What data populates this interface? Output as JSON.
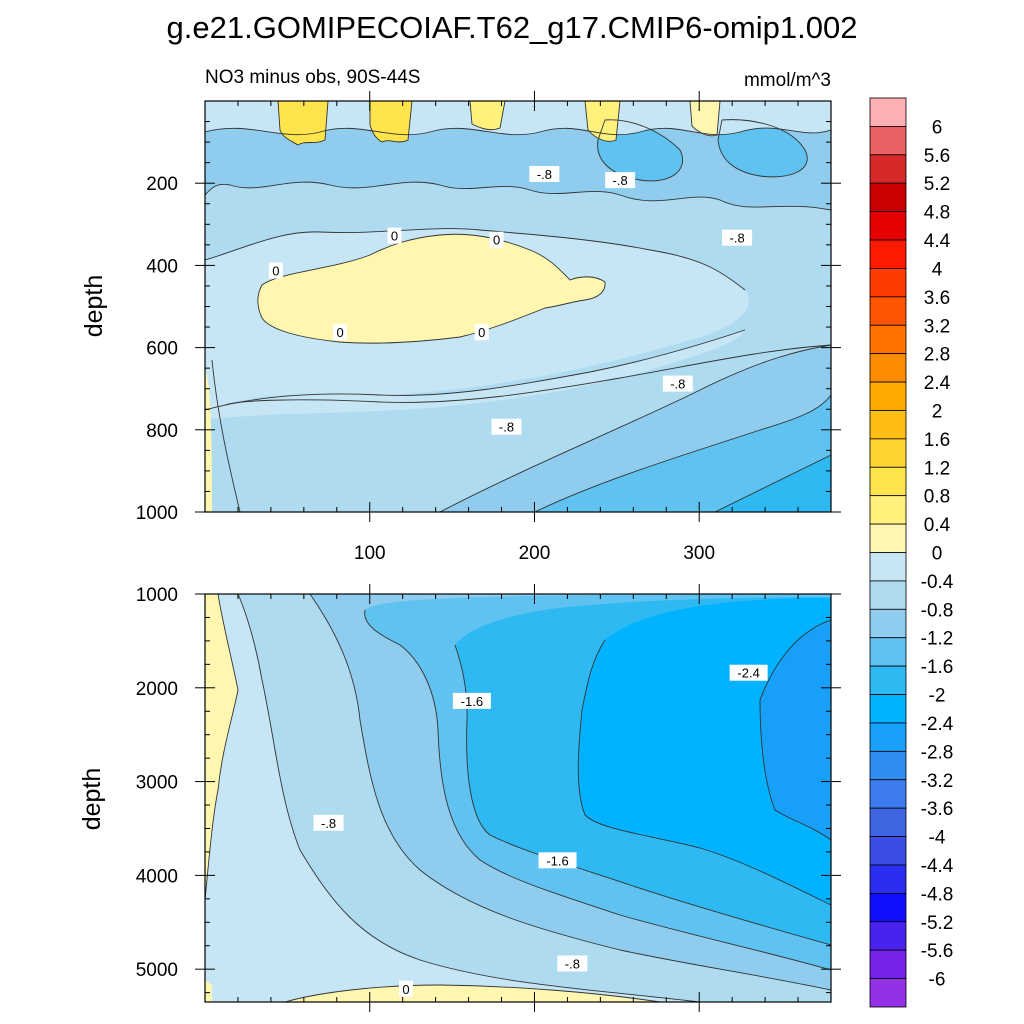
{
  "title": "g.e21.GOMIPECOIAF.T62_g17.CMIP6-omip1.002",
  "chart_data": [
    {
      "type": "contour",
      "panel": "upper",
      "subtitle_left": "NO3 minus obs, 90S-44S",
      "subtitle_right": "mmol/m^3",
      "ylabel": "depth",
      "xlabel": "",
      "xlim": [
        0,
        380
      ],
      "ylim": [
        1000,
        0
      ],
      "x_ticks": [
        100,
        200,
        300
      ],
      "x_tick_labels": [
        "100",
        "200",
        "300"
      ],
      "y_ticks": [
        200,
        400,
        600,
        800,
        1000
      ],
      "y_tick_labels": [
        "200",
        "400",
        "600",
        "800",
        "1000"
      ],
      "contour_labels": [
        {
          "text": "0",
          "x": 115,
          "y": 330
        },
        {
          "text": "0",
          "x": 177,
          "y": 340
        },
        {
          "text": "0",
          "x": 43,
          "y": 415
        },
        {
          "text": "0",
          "x": 82,
          "y": 565
        },
        {
          "text": "0",
          "x": 168,
          "y": 565
        },
        {
          "text": "-.8",
          "x": 206,
          "y": 180
        },
        {
          "text": "-.8",
          "x": 252,
          "y": 195
        },
        {
          "text": "-.8",
          "x": 323,
          "y": 335
        },
        {
          "text": "-.8",
          "x": 287,
          "y": 690
        },
        {
          "text": "-.8",
          "x": 183,
          "y": 795
        }
      ]
    },
    {
      "type": "contour",
      "panel": "lower",
      "ylabel": "depth",
      "xlim": [
        0,
        380
      ],
      "ylim": [
        5350,
        1000
      ],
      "x_ticks": [
        100,
        200,
        300
      ],
      "y_ticks": [
        1000,
        2000,
        3000,
        4000,
        5000
      ],
      "y_tick_labels": [
        "1000",
        "2000",
        "3000",
        "4000",
        "5000"
      ],
      "contour_labels": [
        {
          "text": "-1.6",
          "x": 162,
          "y": 2150
        },
        {
          "text": "-2.4",
          "x": 330,
          "y": 1850
        },
        {
          "text": "-.8",
          "x": 75,
          "y": 3450
        },
        {
          "text": "-1.6",
          "x": 214,
          "y": 3850
        },
        {
          "text": "-.8",
          "x": 223,
          "y": 4950
        },
        {
          "text": "0",
          "x": 122,
          "y": 5220
        }
      ]
    }
  ],
  "colorbar": {
    "labels": [
      "6",
      "5.6",
      "5.2",
      "4.8",
      "4.4",
      "4",
      "3.6",
      "3.2",
      "2.8",
      "2.4",
      "2",
      "1.6",
      "1.2",
      "0.8",
      "0.4",
      "0",
      "-0.4",
      "-0.8",
      "-1.2",
      "-1.6",
      "-2",
      "-2.4",
      "-2.8",
      "-3.2",
      "-3.6",
      "-4",
      "-4.4",
      "-4.8",
      "-5.2",
      "-5.6",
      "-6"
    ],
    "colors": [
      "#FFB0B4",
      "#E86062",
      "#D62828",
      "#CC0000",
      "#E60000",
      "#FF1A00",
      "#FF3B00",
      "#FF5500",
      "#FF7200",
      "#FF8C00",
      "#FFA800",
      "#FFBE14",
      "#FFD42E",
      "#FFE44C",
      "#FFF17C",
      "#FFF7B0",
      "#C6E6F5",
      "#AEDBF0",
      "#8FCCEE",
      "#5FC2F0",
      "#2EB9F2",
      "#00B2FF",
      "#189FF7",
      "#2F8FF0",
      "#3C7CEE",
      "#3E65E2",
      "#3A4EE6",
      "#2A2EF0",
      "#1010FF",
      "#4A22F0",
      "#7722E8",
      "#9430E6"
    ]
  },
  "field_colors": {
    "c_pos1": "#FFF7B0",
    "c_pos2": "#FFF17C",
    "c_pos3": "#FFE44C",
    "c_m04": "#C6E6F5",
    "c_m08": "#AEDBF0",
    "c_m12": "#8FCCEE",
    "c_m16": "#5FC2F0",
    "c_m20": "#2EB9F2",
    "c_m24": "#00B2FF",
    "c_m28": "#189FF7",
    "c_m32": "#2F8FF0"
  }
}
